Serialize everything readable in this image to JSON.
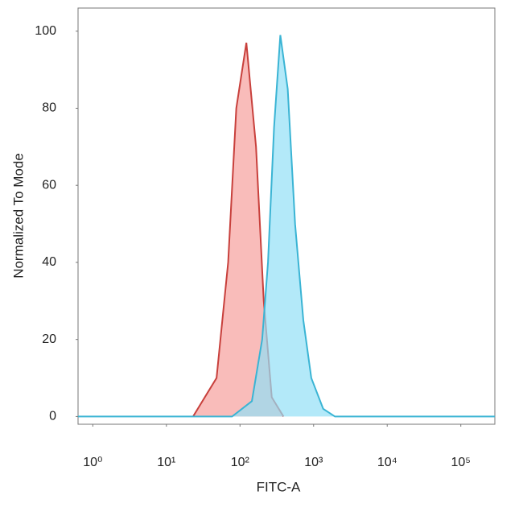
{
  "chart_data": {
    "type": "area",
    "ylabel": "Normalized To Mode",
    "xlabel": "FITC-A",
    "xscale": "log",
    "xlim": [
      0.63,
      290000
    ],
    "ylim": [
      -2,
      106
    ],
    "xticks": [
      {
        "value": 1,
        "label": "10⁰"
      },
      {
        "value": 10,
        "label": "10¹"
      },
      {
        "value": 100,
        "label": "10²"
      },
      {
        "value": 1000,
        "label": "10³"
      },
      {
        "value": 10000,
        "label": "10⁴"
      },
      {
        "value": 100000,
        "label": "10⁵"
      }
    ],
    "yticks": [
      0,
      20,
      40,
      60,
      80,
      100
    ],
    "series": [
      {
        "color": "#c8403c",
        "fill": "#f7a09c",
        "x": [
          23,
          48,
          69,
          89,
          122,
          165,
          210,
          270,
          390
        ],
        "values": [
          0,
          10,
          40,
          80,
          97,
          70,
          30,
          5,
          0
        ]
      },
      {
        "color": "#3ab4d4",
        "fill": "#93e0f6",
        "x": [
          0.63,
          78,
          145,
          200,
          240,
          290,
          353,
          445,
          560,
          725,
          930,
          1350,
          1950,
          290000
        ],
        "values": [
          0,
          0,
          4,
          20,
          40,
          75,
          99,
          85,
          50,
          25,
          10,
          2,
          0,
          0
        ]
      }
    ]
  }
}
